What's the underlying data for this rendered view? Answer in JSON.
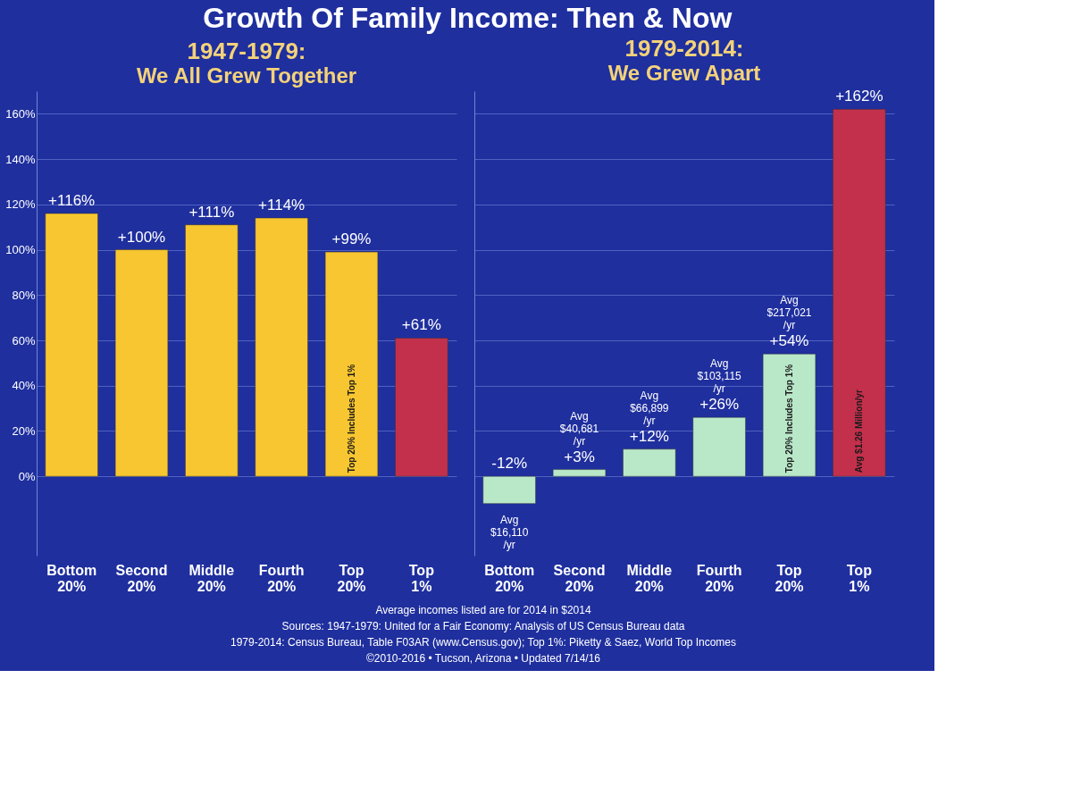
{
  "chart_data": [
    {
      "type": "bar",
      "title": "Growth Of Family Income: Then & Now",
      "subtitle": "1947-1979: We All Grew Together",
      "categories": [
        "Bottom 20%",
        "Second 20%",
        "Middle 20%",
        "Fourth 20%",
        "Top 20%",
        "Top 1%"
      ],
      "values": [
        116,
        100,
        111,
        114,
        99,
        61
      ],
      "colors": [
        "#f8c630",
        "#f8c630",
        "#f8c630",
        "#f8c630",
        "#f8c630",
        "#c3304c"
      ],
      "value_labels": [
        "+116%",
        "+100%",
        "+111%",
        "+114%",
        "+99%",
        "+61%"
      ],
      "ylim": [
        -35,
        170
      ],
      "yticks": [
        {
          "value": 0,
          "label": "0%"
        },
        {
          "value": 20,
          "label": "20%"
        },
        {
          "value": 40,
          "label": "40%"
        },
        {
          "value": 60,
          "label": "60%"
        },
        {
          "value": 80,
          "label": "80%"
        },
        {
          "value": 100,
          "label": "100%"
        },
        {
          "value": 120,
          "label": "120%"
        },
        {
          "value": 140,
          "label": "140%"
        },
        {
          "value": 160,
          "label": "160%"
        }
      ],
      "grid": "y",
      "annotations": [
        {
          "text": "Top 20% Includes Top 1%",
          "x": "Top 20%",
          "y": 0
        }
      ]
    },
    {
      "type": "bar",
      "subtitle": "1979-2014: We Grew Apart",
      "categories": [
        "Bottom 20%",
        "Second 20%",
        "Middle 20%",
        "Fourth 20%",
        "Top 20%",
        "Top 1%"
      ],
      "values": [
        -12,
        3,
        12,
        26,
        54,
        162
      ],
      "colors": [
        "#b9e8c9",
        "#b9e8c9",
        "#b9e8c9",
        "#b9e8c9",
        "#b9e8c9",
        "#c3304c"
      ],
      "value_labels": [
        "-12%",
        "+3%",
        "+12%",
        "+26%",
        "+54%",
        "+162%"
      ],
      "ylim": [
        -35,
        170
      ],
      "grid": "y",
      "tick_labels": "x",
      "annotations": [
        {
          "text": "Avg $16,110 /yr",
          "x": "Bottom 20%",
          "y": -12
        },
        {
          "text": "Avg $40,681 /yr",
          "x": "Second 20%",
          "y": 3
        },
        {
          "text": "Avg $66,899 /yr",
          "x": "Middle 20%",
          "y": 12
        },
        {
          "text": "Avg $103,115 /yr",
          "x": "Fourth 20%",
          "y": 26
        },
        {
          "text": "Avg $217,021 /yr",
          "x": "Top 20%",
          "y": 54
        },
        {
          "text": "Top 20% Includes Top 1%",
          "x": "Top 20%",
          "y": 0
        },
        {
          "text": "Avg $1.26 Million/yr",
          "x": "Top 1%",
          "y": 0
        },
        "Average incomes listed are for 2014 in $2014",
        "Sources: 1947-1979: United for a Fair Economy: Analysis of US Census Bureau data",
        "1979-2014: Census Bureau, Table F03AR (www.Census.gov); Top 1%: Piketty & Saez, World Top Incomes",
        "©2010-2016 • Tucson, Arizona • Updated 7/14/16"
      ]
    }
  ]
}
